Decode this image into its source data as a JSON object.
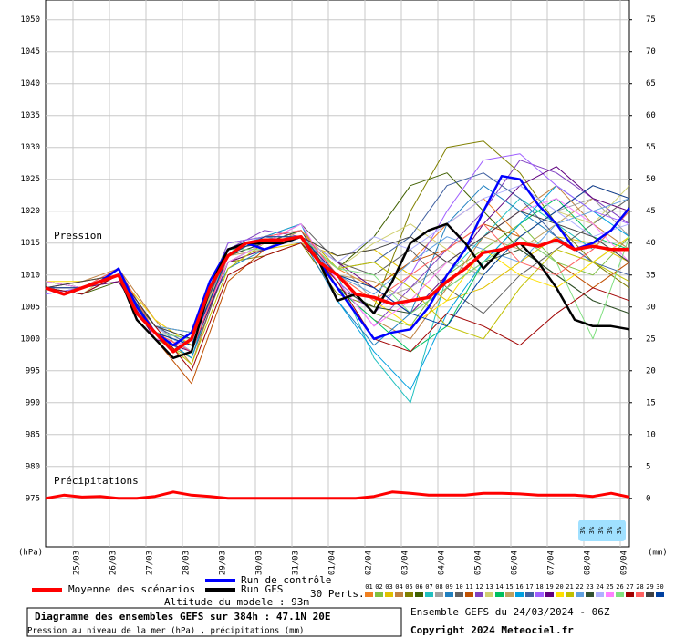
{
  "chart_data": {
    "type": "line",
    "xlim": [
      0,
      384
    ],
    "xticks": [
      {
        "value": 18,
        "label": "25/03"
      },
      {
        "value": 42,
        "label": "26/03"
      },
      {
        "value": 66,
        "label": "27/03"
      },
      {
        "value": 90,
        "label": "28/03"
      },
      {
        "value": 114,
        "label": "29/03"
      },
      {
        "value": 138,
        "label": "30/03"
      },
      {
        "value": 162,
        "label": "31/03"
      },
      {
        "value": 186,
        "label": "01/04"
      },
      {
        "value": 210,
        "label": "02/04"
      },
      {
        "value": 234,
        "label": "03/04"
      },
      {
        "value": 258,
        "label": "04/04"
      },
      {
        "value": 282,
        "label": "05/04"
      },
      {
        "value": 306,
        "label": "06/04"
      },
      {
        "value": 330,
        "label": "07/04"
      },
      {
        "value": 354,
        "label": "08/04"
      },
      {
        "value": 378,
        "label": "09/04"
      }
    ],
    "ylim": [
      967.4,
      1053.1
    ],
    "yticks": [
      975,
      980,
      985,
      990,
      995,
      1000,
      1005,
      1010,
      1015,
      1020,
      1025,
      1030,
      1035,
      1040,
      1045,
      1050
    ],
    "y2lim": [
      -7.6,
      78.1
    ],
    "y2ticks": [
      0,
      5,
      10,
      15,
      20,
      25,
      30,
      35,
      40,
      45,
      50,
      55,
      60,
      65,
      70,
      75
    ],
    "ylabel": "(hPa)",
    "y2label": "(mm)",
    "grid": true,
    "annotations": [
      "Pression",
      "Précipitations"
    ],
    "x": [
      0,
      12,
      24,
      36,
      48,
      60,
      72,
      84,
      96,
      108,
      120,
      132,
      144,
      156,
      168,
      180,
      192,
      204,
      216,
      228,
      240,
      252,
      264,
      276,
      288,
      300,
      312,
      324,
      336,
      348,
      360,
      372,
      384
    ],
    "series": [
      {
        "name": "Run de contrôle",
        "color": "#0000ff",
        "values": [
          1008,
          1007,
          1008,
          1009,
          1011,
          1005,
          1001,
          999,
          1001,
          1009,
          1014,
          1015,
          1014,
          1015,
          1016,
          1012,
          1008,
          1004,
          1000,
          1001,
          1001.5,
          1005,
          1010,
          1014,
          1020,
          1025.5,
          1025,
          1021,
          1018,
          1014,
          1015,
          1017,
          1020.5
        ]
      },
      {
        "name": "Run GFS",
        "color": "#000000",
        "values": [
          1008,
          1007,
          1008,
          1009,
          1010,
          1003,
          1000,
          997,
          998,
          1008,
          1014,
          1015,
          1015,
          1015,
          1016,
          1012,
          1006,
          1007,
          1004,
          1009,
          1015,
          1017,
          1018,
          1015,
          1011,
          1014,
          1015,
          1012,
          1008,
          1003,
          1002,
          1002,
          1001.5
        ]
      },
      {
        "name": "Moyenne des scénarios",
        "color": "#ff0000",
        "values": [
          1008,
          1007,
          1008,
          1009,
          1010,
          1004,
          1001,
          998,
          1000,
          1008,
          1013,
          1015,
          1015.5,
          1015.5,
          1016,
          1012,
          1010,
          1007,
          1006.5,
          1005.5,
          1006,
          1006.5,
          1009,
          1011,
          1013.5,
          1014,
          1015,
          1014.5,
          1015.5,
          1014,
          1014.5,
          1014,
          1014
        ]
      }
    ],
    "precip_series": [
      {
        "color": "#ff0000",
        "axis": "y2",
        "values": [
          0,
          0.5,
          0.2,
          0.3,
          0,
          0,
          0.3,
          1,
          0.5,
          0.3,
          0,
          0,
          0,
          0,
          0,
          0,
          0,
          0,
          0.3,
          1,
          0.8,
          0.5,
          0.5,
          0.5,
          0.8,
          0.8,
          0.7,
          0.5,
          0.5,
          0.5,
          0.3,
          0.8,
          0.2
        ]
      }
    ],
    "perturbations": {
      "label": "30 Perts.",
      "x": [
        0,
        24,
        48,
        72,
        96,
        120,
        144,
        168,
        192,
        216,
        240,
        264,
        288,
        312,
        336,
        360,
        384
      ],
      "series": [
        {
          "name": "01",
          "color": "#f08020",
          "values": [
            1008,
            1007,
            1010,
            1002,
            998,
            1012,
            1015,
            1017,
            1011,
            1008,
            1012,
            1018,
            1022,
            1016,
            1020,
            1024,
            1022
          ]
        },
        {
          "name": "02",
          "color": "#80c040",
          "values": [
            1009,
            1008,
            1011,
            1000,
            997,
            1014,
            1016,
            1016,
            1009,
            1004,
            1002,
            1010,
            1014,
            1018,
            1012,
            1010,
            1016
          ]
        },
        {
          "name": "03",
          "color": "#e0c000",
          "values": [
            1008,
            1008,
            1010,
            1001,
            1000,
            1012,
            1014,
            1015,
            1013,
            1014,
            1010,
            1006,
            1008,
            1012,
            1016,
            1015,
            1012
          ]
        },
        {
          "name": "04",
          "color": "#c08040",
          "values": [
            1008,
            1009,
            1011,
            1003,
            996,
            1013,
            1016,
            1018,
            1008,
            1003,
            1000,
            1008,
            1016,
            1020,
            1024,
            1018,
            1014
          ]
        },
        {
          "name": "05",
          "color": "#808000",
          "values": [
            1009,
            1008,
            1010,
            1000,
            999,
            1012,
            1013,
            1015,
            1007,
            1005,
            1020,
            1030,
            1031,
            1026,
            1018,
            1012,
            1008
          ]
        },
        {
          "name": "06",
          "color": "#406000",
          "values": [
            1008,
            1007,
            1009,
            1002,
            1001,
            1015,
            1016,
            1016,
            1011,
            1016,
            1024,
            1026,
            1020,
            1014,
            1010,
            1006,
            1004
          ]
        },
        {
          "name": "07",
          "color": "#20c0c0",
          "values": [
            1007,
            1008,
            1010,
            1001,
            999,
            1014,
            1015,
            1017,
            1010,
            997,
            990,
            1010,
            1016,
            1022,
            1018,
            1014,
            1020
          ]
        },
        {
          "name": "08",
          "color": "#a0a0a0",
          "values": [
            1008,
            1008,
            1011,
            1001,
            998,
            1013,
            1016,
            1016,
            1012,
            1006,
            1008,
            1012,
            1010,
            1016,
            1020,
            1022,
            1016
          ]
        },
        {
          "name": "09",
          "color": "#2080c0",
          "values": [
            1008,
            1007,
            1010,
            1002,
            1000,
            1011,
            1014,
            1016,
            1006,
            999,
            1004,
            1018,
            1024,
            1020,
            1016,
            1012,
            1016
          ]
        },
        {
          "name": "10",
          "color": "#606060",
          "values": [
            1009,
            1008,
            1010,
            1001,
            997,
            1012,
            1015,
            1018,
            1012,
            1010,
            1014,
            1008,
            1004,
            1010,
            1014,
            1018,
            1022
          ]
        },
        {
          "name": "11",
          "color": "#c05000",
          "values": [
            1008,
            1008,
            1009,
            1000,
            993,
            1009,
            1014,
            1016,
            1010,
            1008,
            1012,
            1014,
            1018,
            1016,
            1012,
            1008,
            1012
          ]
        },
        {
          "name": "12",
          "color": "#8040c0",
          "values": [
            1008,
            1009,
            1010,
            1003,
            999,
            1014,
            1017,
            1016,
            1009,
            1002,
            1008,
            1014,
            1020,
            1028,
            1026,
            1022,
            1018
          ]
        },
        {
          "name": "13",
          "color": "#d0d070",
          "values": [
            1008,
            1007,
            1011,
            1001,
            1000,
            1013,
            1016,
            1015,
            1011,
            1015,
            1018,
            1014,
            1010,
            1016,
            1020,
            1018,
            1024
          ]
        },
        {
          "name": "14",
          "color": "#00c060",
          "values": [
            1009,
            1008,
            1010,
            1002,
            998,
            1012,
            1015,
            1016,
            1008,
            1003,
            998,
            1002,
            1012,
            1018,
            1022,
            1016,
            1014
          ]
        },
        {
          "name": "15",
          "color": "#c0a060",
          "values": [
            1008,
            1008,
            1010,
            1000,
            999,
            1013,
            1014,
            1017,
            1010,
            1009,
            1006,
            1012,
            1016,
            1014,
            1018,
            1022,
            1020
          ]
        },
        {
          "name": "16",
          "color": "#00a0e0",
          "values": [
            1008,
            1008,
            1011,
            1001,
            997,
            1014,
            1016,
            1018,
            1006,
            998,
            992,
            1004,
            1012,
            1018,
            1024,
            1020,
            1016
          ]
        },
        {
          "name": "17",
          "color": "#4060a0",
          "values": [
            1008,
            1007,
            1010,
            1002,
            999,
            1013,
            1015,
            1016,
            1011,
            1012,
            1016,
            1024,
            1026,
            1022,
            1016,
            1012,
            1010
          ]
        },
        {
          "name": "18",
          "color": "#a060ff",
          "values": [
            1007,
            1008,
            1010,
            1001,
            1000,
            1015,
            1016,
            1017,
            1009,
            1004,
            1010,
            1020,
            1028,
            1029,
            1024,
            1020,
            1018
          ]
        },
        {
          "name": "19",
          "color": "#600080",
          "values": [
            1008,
            1008,
            1009,
            1000,
            998,
            1012,
            1014,
            1016,
            1012,
            1008,
            1004,
            1010,
            1018,
            1024,
            1027,
            1022,
            1020
          ]
        },
        {
          "name": "20",
          "color": "#ffe000",
          "values": [
            1009,
            1009,
            1010,
            1003,
            999,
            1013,
            1016,
            1016,
            1010,
            1006,
            1002,
            1006,
            1014,
            1010,
            1008,
            1012,
            1016
          ]
        },
        {
          "name": "21",
          "color": "#c0c000",
          "values": [
            1008,
            1008,
            1011,
            1001,
            996,
            1011,
            1015,
            1017,
            1011,
            1012,
            1008,
            1002,
            1000,
            1008,
            1014,
            1012,
            1009
          ]
        },
        {
          "name": "22",
          "color": "#60a0e0",
          "values": [
            1008,
            1007,
            1010,
            1002,
            1001,
            1014,
            1016,
            1015,
            1010,
            1007,
            1012,
            1016,
            1014,
            1012,
            1018,
            1020,
            1022
          ]
        },
        {
          "name": "23",
          "color": "#305030",
          "values": [
            1008,
            1008,
            1010,
            1001,
            999,
            1013,
            1015,
            1017,
            1008,
            1005,
            1004,
            1008,
            1012,
            1014,
            1010,
            1006,
            1004
          ]
        },
        {
          "name": "24",
          "color": "#b0b0ff",
          "values": [
            1008,
            1008,
            1010,
            1002,
            998,
            1013,
            1016,
            1016,
            1012,
            1016,
            1014,
            1018,
            1022,
            1024,
            1020,
            1016,
            1018
          ]
        },
        {
          "name": "25",
          "color": "#ff80ff",
          "values": [
            1009,
            1008,
            1011,
            1000,
            999,
            1012,
            1015,
            1018,
            1009,
            1002,
            1006,
            1012,
            1016,
            1020,
            1022,
            1018,
            1012
          ]
        },
        {
          "name": "26",
          "color": "#80e080",
          "values": [
            1008,
            1008,
            1010,
            1001,
            1000,
            1014,
            1014,
            1016,
            1011,
            1010,
            1004,
            1008,
            1012,
            1016,
            1012,
            1000,
            1016
          ]
        },
        {
          "name": "27",
          "color": "#a00000",
          "values": [
            1008,
            1007,
            1010,
            1002,
            995,
            1010,
            1013,
            1015,
            1009,
            1000,
            998,
            1004,
            1002,
            999,
            1004,
            1008,
            1006
          ]
        },
        {
          "name": "28",
          "color": "#ff6060",
          "values": [
            1008,
            1008,
            1011,
            1001,
            998,
            1013,
            1016,
            1017,
            1010,
            1006,
            1010,
            1014,
            1018,
            1012,
            1010,
            1014,
            1020
          ]
        },
        {
          "name": "29",
          "color": "#404040",
          "values": [
            1008,
            1009,
            1010,
            1002,
            1000,
            1014,
            1015,
            1016,
            1013,
            1014,
            1016,
            1012,
            1016,
            1020,
            1018,
            1016,
            1012
          ]
        },
        {
          "name": "30",
          "color": "#0040a0",
          "values": [
            1008,
            1008,
            1010,
            1001,
            999,
            1013,
            1016,
            1016,
            1010,
            1008,
            1004,
            1002,
            1010,
            1016,
            1020,
            1024,
            1022
          ]
        }
      ]
    },
    "snow_labels": [
      "3%",
      "3%",
      "3%",
      "3%",
      "3%"
    ],
    "altitude": "Altitude du modele : 93m",
    "caption_title": "Diagramme des ensembles GEFS sur 384h : 47.1N 20E",
    "caption_subtitle": "Pression au niveau de la mer (hPa) , précipitations (mm)",
    "run_info": "Ensemble GEFS du 24/03/2024 - 06Z",
    "copyright": "Copyright 2024 Meteociel.fr"
  }
}
